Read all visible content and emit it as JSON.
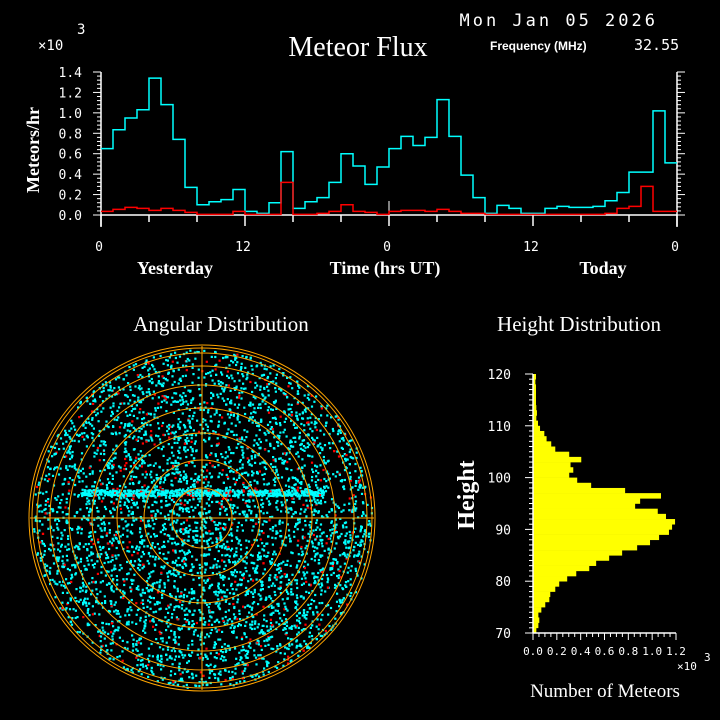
{
  "header": {
    "date": "Mon Jan 05 2026",
    "frequency_label": "Frequency (MHz)",
    "frequency_value": "32.55"
  },
  "colors": {
    "background": "#000000",
    "axes": "#ffffff",
    "total_series": "#00ffff",
    "subset_series": "#ff0000",
    "grid_rings": "#ffa500",
    "height_bars": "#ffff00"
  },
  "chart_data": [
    {
      "type": "line",
      "style": "step",
      "title": "Meteor Flux",
      "ylabel": "Meteors/hr",
      "y_multiplier": "×10",
      "y_multiplier_exp": "3",
      "ylim": [
        0,
        1.4
      ],
      "yticks": [
        "0.0",
        "0.2",
        "0.4",
        "0.6",
        "0.8",
        "1.0",
        "1.2",
        "1.4"
      ],
      "xticks": [
        "0",
        "12",
        "0",
        "12",
        "0"
      ],
      "xlabels": {
        "left": "Yesterday",
        "center": "Time (hrs UT)",
        "right": "Today"
      },
      "x_hours": 48,
      "series": [
        {
          "color": "#00ffff",
          "values": [
            0.65,
            0.835,
            0.95,
            1.03,
            1.34,
            1.08,
            0.74,
            0.27,
            0.1,
            0.13,
            0.15,
            0.25,
            0.036,
            0.016,
            0.12,
            0.62,
            0.065,
            0.13,
            0.17,
            0.32,
            0.6,
            0.48,
            0.3,
            0.47,
            0.65,
            0.77,
            0.68,
            0.76,
            1.13,
            0.77,
            0.39,
            0.17,
            0.016,
            0.094,
            0.065,
            0.016,
            0.016,
            0.065,
            0.084,
            0.075,
            0.075,
            0.084,
            0.14,
            0.22,
            0.42,
            0.42,
            1.02,
            0.51
          ]
        },
        {
          "color": "#ff0000",
          "values": [
            0.036,
            0.055,
            0.075,
            0.065,
            0.045,
            0.065,
            0.045,
            0.026,
            0.006,
            0.006,
            0.006,
            0.036,
            0.006,
            0.006,
            0.006,
            0.32,
            0.006,
            0.006,
            0.016,
            0.036,
            0.1,
            0.036,
            0.026,
            0.006,
            0.036,
            0.045,
            0.045,
            0.036,
            0.055,
            0.036,
            0.016,
            0.016,
            0.006,
            0.006,
            0.006,
            0.006,
            0.006,
            0.006,
            0.006,
            0.006,
            0.006,
            0.006,
            0.016,
            0.065,
            0.084,
            0.28,
            0.036,
            0.036
          ]
        }
      ]
    },
    {
      "type": "scatter",
      "title": "Angular Distribution",
      "projection": "polar sky map",
      "point_colors": [
        "#00ffff",
        "#ff0000"
      ]
    },
    {
      "type": "bar",
      "orientation": "horizontal",
      "title": "Height Distribution",
      "ylabel": "Height",
      "xlabel": "Number of Meteors",
      "x_multiplier": "×10",
      "x_multiplier_exp": "3",
      "xlim": [
        0,
        1.2
      ],
      "ylim": [
        70,
        120
      ],
      "xticks": [
        "0.0",
        "0.2",
        "0.4",
        "0.6",
        "0.8",
        "1.0",
        "1.2"
      ],
      "yticks": [
        "70",
        "80",
        "90",
        "100",
        "110",
        "120"
      ],
      "bins_lower_km": [
        119,
        118,
        117,
        116,
        115,
        114,
        113,
        112,
        111,
        110,
        109,
        108,
        107,
        106,
        105,
        104,
        103,
        102,
        101,
        100,
        99,
        98,
        97,
        96,
        95,
        94,
        93,
        92,
        91,
        90,
        89,
        88,
        87,
        86,
        85,
        84,
        83,
        82,
        81,
        80,
        79,
        78,
        77,
        76,
        75,
        74,
        73,
        72,
        71,
        70
      ],
      "values": [
        0.025,
        0.02,
        0.025,
        0.025,
        0.025,
        0.025,
        0.028,
        0.033,
        0.028,
        0.042,
        0.059,
        0.095,
        0.114,
        0.153,
        0.187,
        0.304,
        0.405,
        0.315,
        0.338,
        0.304,
        0.371,
        0.488,
        0.773,
        1.074,
        0.899,
        0.857,
        1.047,
        1.116,
        1.192,
        1.167,
        1.141,
        1.058,
        0.982,
        0.874,
        0.748,
        0.639,
        0.53,
        0.472,
        0.363,
        0.287,
        0.22,
        0.187,
        0.145,
        0.137,
        0.103,
        0.07,
        0.045,
        0.053,
        0.045,
        0.028
      ]
    }
  ]
}
